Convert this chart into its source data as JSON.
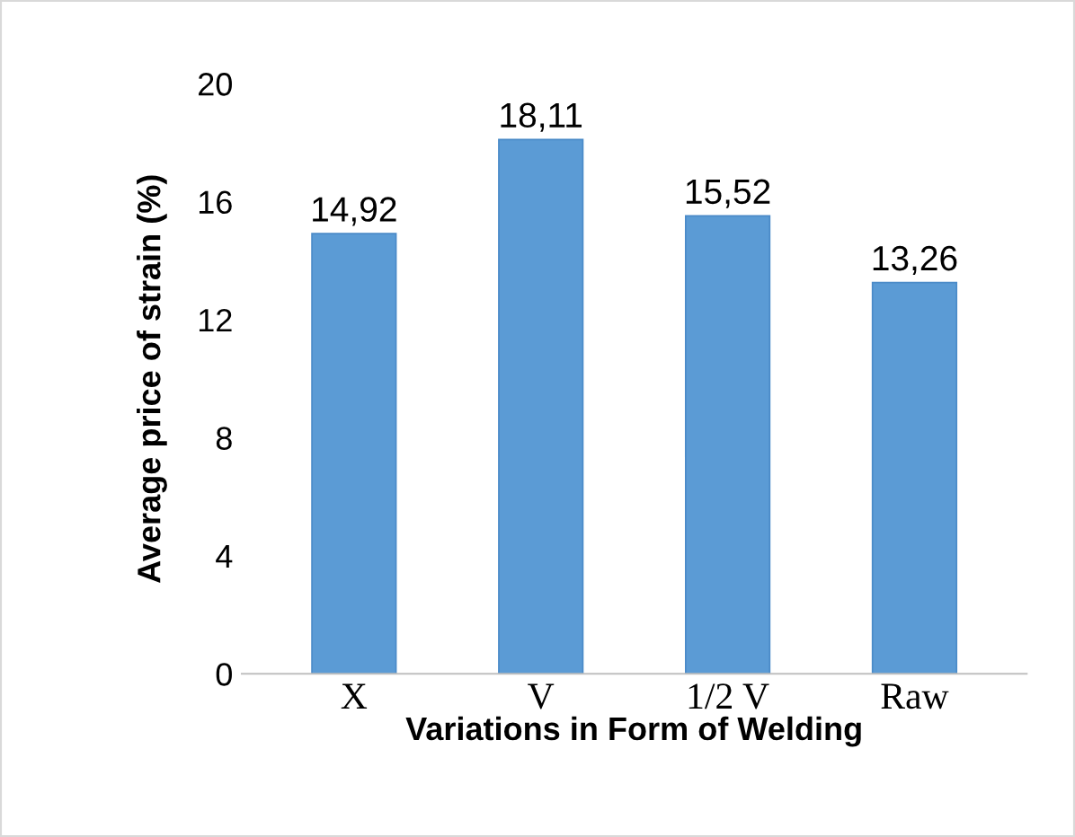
{
  "chart_data": {
    "type": "bar",
    "xlabel": "Variations in Form of Welding",
    "ylabel": "Average price of strain (%)",
    "categories": [
      "X",
      "V",
      "1/2 V",
      "Raw"
    ],
    "values": [
      14.92,
      18.11,
      15.52,
      13.26
    ],
    "value_labels": [
      "14,92",
      "18,11",
      "15,52",
      "13,26"
    ],
    "color": "#5b9bd5",
    "ylim": [
      0,
      20
    ],
    "yticks": [
      0,
      4,
      8,
      12,
      16,
      20
    ],
    "grid": false,
    "legend": false
  }
}
